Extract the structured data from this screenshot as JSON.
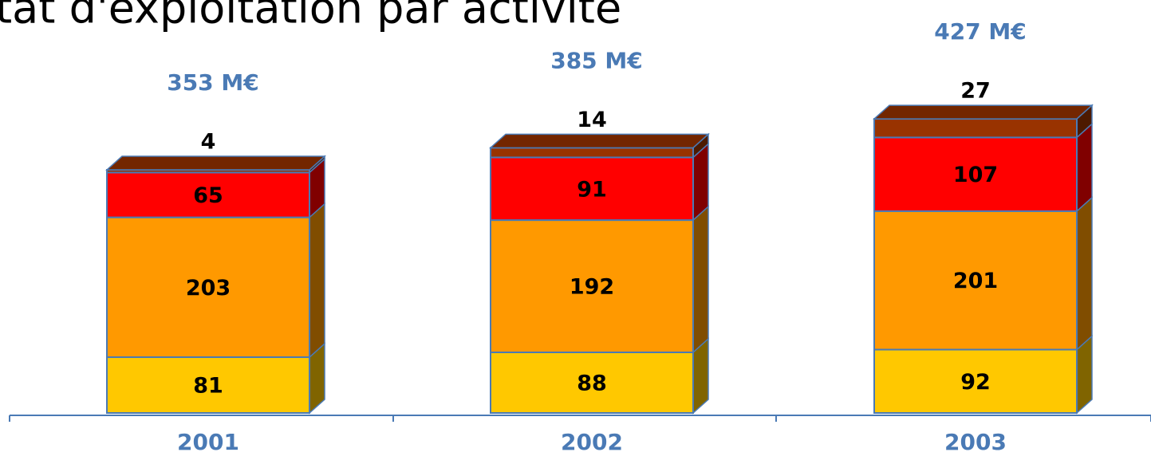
{
  "chart_data": {
    "type": "stacked-bar-3d",
    "title": "tat d'exploitation par activité",
    "categories": [
      "2001",
      "2002",
      "2003"
    ],
    "series": [
      {
        "color": "#ffc800",
        "values": [
          81,
          88,
          92
        ]
      },
      {
        "color": "#ff9900",
        "values": [
          203,
          192,
          201
        ]
      },
      {
        "color": "#ff0000",
        "values": [
          65,
          91,
          107
        ]
      },
      {
        "color": "#993300",
        "values": [
          4,
          14,
          27
        ]
      }
    ],
    "totals": {
      "values": [
        353,
        385,
        427
      ],
      "value_labels": [
        "353 M€",
        "385 M€",
        "427 M€"
      ]
    }
  }
}
